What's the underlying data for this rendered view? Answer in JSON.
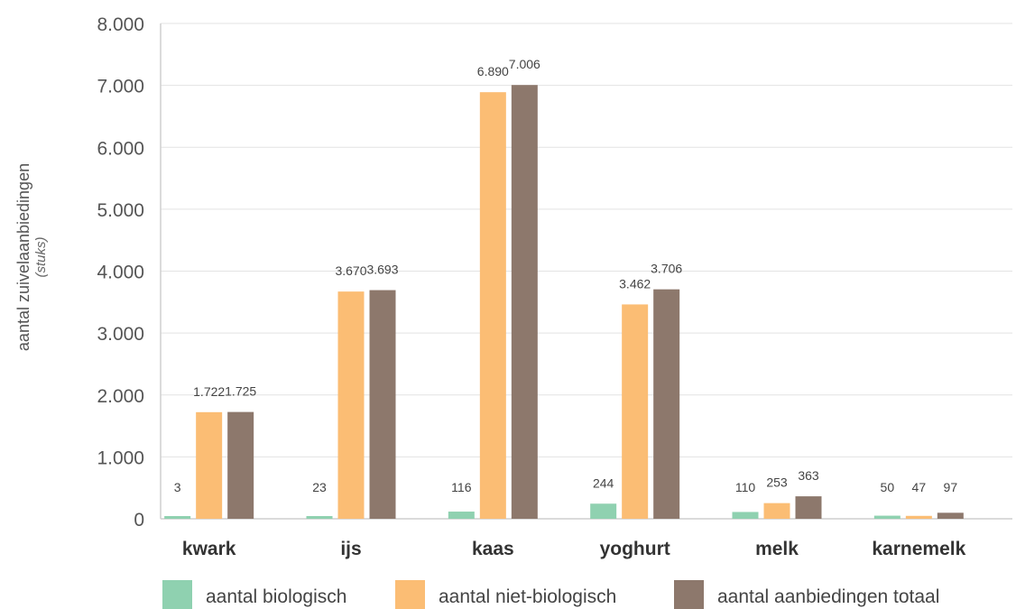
{
  "chart_data": {
    "type": "bar",
    "ylabel": "aantal zuivelaanbiedingen",
    "ylabel_sub": "(stuks)",
    "xlabel": "",
    "ylim": [
      0,
      8000
    ],
    "yticks": [
      "0",
      "1.000",
      "2.000",
      "3.000",
      "4.000",
      "5.000",
      "6.000",
      "7.000",
      "8.000"
    ],
    "grid": true,
    "legend_position": "bottom",
    "categories": [
      "kwark",
      "ijs",
      "kaas",
      "yoghurt",
      "melk",
      "karnemelk"
    ],
    "series": [
      {
        "name": "aantal biologisch",
        "color": "#8fd1b0",
        "values": [
          3,
          23,
          116,
          244,
          110,
          50
        ],
        "labels": [
          "3",
          "23",
          "116",
          "244",
          "110",
          "50"
        ]
      },
      {
        "name": "aantal niet-biologisch",
        "color": "#fbbd74",
        "values": [
          1722,
          3670,
          6890,
          3462,
          253,
          47
        ],
        "labels": [
          "1.722",
          "3.670",
          "6.890",
          "3.462",
          "253",
          "47"
        ]
      },
      {
        "name": "aantal aanbiedingen totaal",
        "color": "#8d786c",
        "values": [
          1725,
          3693,
          7006,
          3706,
          363,
          97
        ],
        "labels": [
          "1.725",
          "3.693",
          "7.006",
          "3.706",
          "363",
          "97"
        ]
      }
    ]
  }
}
